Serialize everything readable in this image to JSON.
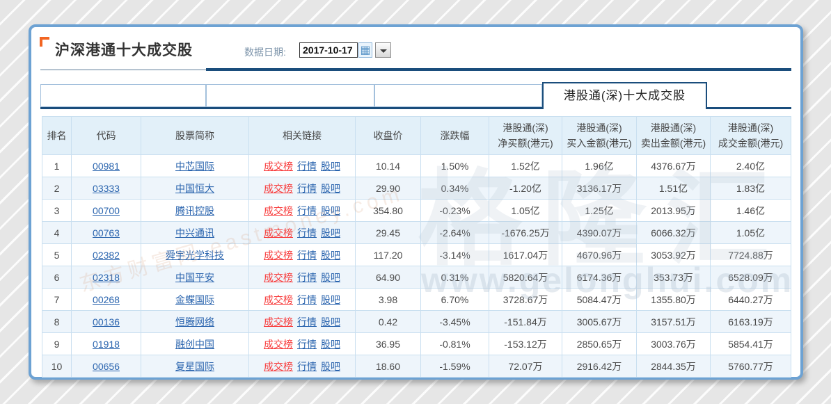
{
  "page": {
    "title": "沪深港通十大成交股",
    "date_label": "数据日期:",
    "date_value": "2017-10-17",
    "active_tab": "港股通(深)十大成交股"
  },
  "watermarks": {
    "big": "格隆汇",
    "url": "www.gelonghui.com",
    "east": "东方财富网 eastmoney.com"
  },
  "icons": {
    "calendar": "▦"
  },
  "colors": {
    "up_red": "#f83b3b",
    "down_green": "#1fa24e",
    "link_blue": "#2a64ae",
    "accent_navy": "#1a4d7c",
    "orange_bracket": "#f26522"
  },
  "table": {
    "headers": [
      {
        "line1": "排名"
      },
      {
        "line1": "代码"
      },
      {
        "line1": "股票简称"
      },
      {
        "line1": "相关链接"
      },
      {
        "line1": "收盘价"
      },
      {
        "line1": "涨跌幅"
      },
      {
        "line1": "港股通(深)",
        "line2": "净买额(港元)"
      },
      {
        "line1": "港股通(深)",
        "line2": "买入金额(港元)"
      },
      {
        "line1": "港股通(深)",
        "line2": "卖出金额(港元)"
      },
      {
        "line1": "港股通(深)",
        "line2": "成交金额(港元)"
      }
    ],
    "link_labels": [
      "成交榜",
      "行情",
      "股吧"
    ],
    "rows": [
      {
        "rank": "1",
        "code": "00981",
        "name": "中芯国际",
        "close": "10.14",
        "change": "1.50%",
        "dir": "up",
        "net": "1.52亿",
        "net_dir": "up",
        "buy": "1.96亿",
        "sell": "4376.67万",
        "total": "2.40亿"
      },
      {
        "rank": "2",
        "code": "03333",
        "name": "中国恒大",
        "close": "29.90",
        "change": "0.34%",
        "dir": "up",
        "net": "-1.20亿",
        "net_dir": "down",
        "buy": "3136.17万",
        "sell": "1.51亿",
        "total": "1.83亿"
      },
      {
        "rank": "3",
        "code": "00700",
        "name": "腾讯控股",
        "close": "354.80",
        "change": "-0.23%",
        "dir": "down",
        "net": "1.05亿",
        "net_dir": "up",
        "buy": "1.25亿",
        "sell": "2013.95万",
        "total": "1.46亿"
      },
      {
        "rank": "4",
        "code": "00763",
        "name": "中兴通讯",
        "close": "29.45",
        "change": "-2.64%",
        "dir": "down",
        "net": "-1676.25万",
        "net_dir": "down",
        "buy": "4390.07万",
        "sell": "6066.32万",
        "total": "1.05亿"
      },
      {
        "rank": "5",
        "code": "02382",
        "name": "舜宇光学科技",
        "close": "117.20",
        "change": "-3.14%",
        "dir": "down",
        "net": "1617.04万",
        "net_dir": "up",
        "buy": "4670.96万",
        "sell": "3053.92万",
        "total": "7724.88万"
      },
      {
        "rank": "6",
        "code": "02318",
        "name": "中国平安",
        "close": "64.90",
        "change": "0.31%",
        "dir": "up",
        "net": "5820.64万",
        "net_dir": "up",
        "buy": "6174.36万",
        "sell": "353.73万",
        "total": "6528.09万"
      },
      {
        "rank": "7",
        "code": "00268",
        "name": "金蝶国际",
        "close": "3.98",
        "change": "6.70%",
        "dir": "up",
        "net": "3728.67万",
        "net_dir": "up",
        "buy": "5084.47万",
        "sell": "1355.80万",
        "total": "6440.27万"
      },
      {
        "rank": "8",
        "code": "00136",
        "name": "恒腾网络",
        "close": "0.42",
        "change": "-3.45%",
        "dir": "down",
        "net": "-151.84万",
        "net_dir": "down",
        "buy": "3005.67万",
        "sell": "3157.51万",
        "total": "6163.19万"
      },
      {
        "rank": "9",
        "code": "01918",
        "name": "融创中国",
        "close": "36.95",
        "change": "-0.81%",
        "dir": "down",
        "net": "-153.12万",
        "net_dir": "down",
        "buy": "2850.65万",
        "sell": "3003.76万",
        "total": "5854.41万"
      },
      {
        "rank": "10",
        "code": "00656",
        "name": "复星国际",
        "close": "18.60",
        "change": "-1.59%",
        "dir": "down",
        "net": "72.07万",
        "net_dir": "up",
        "buy": "2916.42万",
        "sell": "2844.35万",
        "total": "5760.77万"
      }
    ]
  }
}
